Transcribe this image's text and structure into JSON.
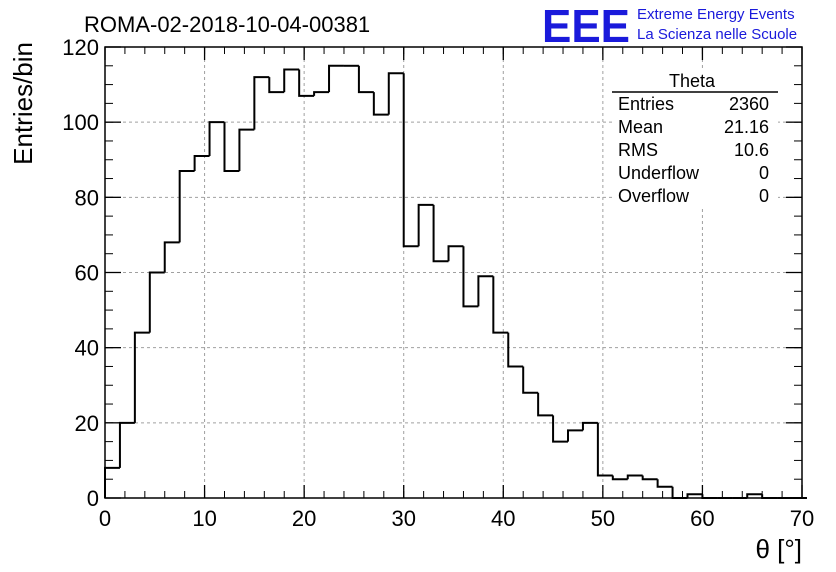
{
  "header": {
    "run_title": "ROMA-02-2018-10-04-00381",
    "logo_text": "EEE",
    "logo_line1": "Extreme Energy Events",
    "logo_line2": "La Scienza nelle Scuole"
  },
  "colors": {
    "logo": "#1a1adb",
    "hist_line": "#000000",
    "grid": "#a0a0a0"
  },
  "chart_data": {
    "type": "histogram",
    "xlabel": "θ [°]",
    "ylabel": "Entries/bin",
    "xlim": [
      0,
      70
    ],
    "ylim": [
      0,
      120
    ],
    "x_ticks": [
      "0",
      "10",
      "20",
      "30",
      "40",
      "50",
      "60",
      "70"
    ],
    "y_ticks": [
      "0",
      "20",
      "40",
      "60",
      "80",
      "100",
      "120"
    ],
    "grid": true,
    "bin_width": 1.5,
    "bin_start": 0,
    "values": [
      8,
      20,
      44,
      60,
      68,
      87,
      91,
      100,
      87,
      98,
      112,
      108,
      114,
      107,
      108,
      115,
      115,
      108,
      102,
      113,
      67,
      78,
      63,
      67,
      51,
      59,
      44,
      35,
      28,
      22,
      15,
      18,
      20,
      6,
      5,
      6,
      5,
      3,
      0,
      1,
      0,
      0,
      0,
      1,
      0,
      0,
      0
    ],
    "stats_box": {
      "title": "Theta",
      "position": "top-right",
      "rows": [
        {
          "label": "Entries",
          "value": "2360"
        },
        {
          "label": "Mean",
          "value": "21.16"
        },
        {
          "label": "RMS",
          "value": "10.6"
        },
        {
          "label": "Underflow",
          "value": "0"
        },
        {
          "label": "Overflow",
          "value": "0"
        }
      ]
    }
  }
}
